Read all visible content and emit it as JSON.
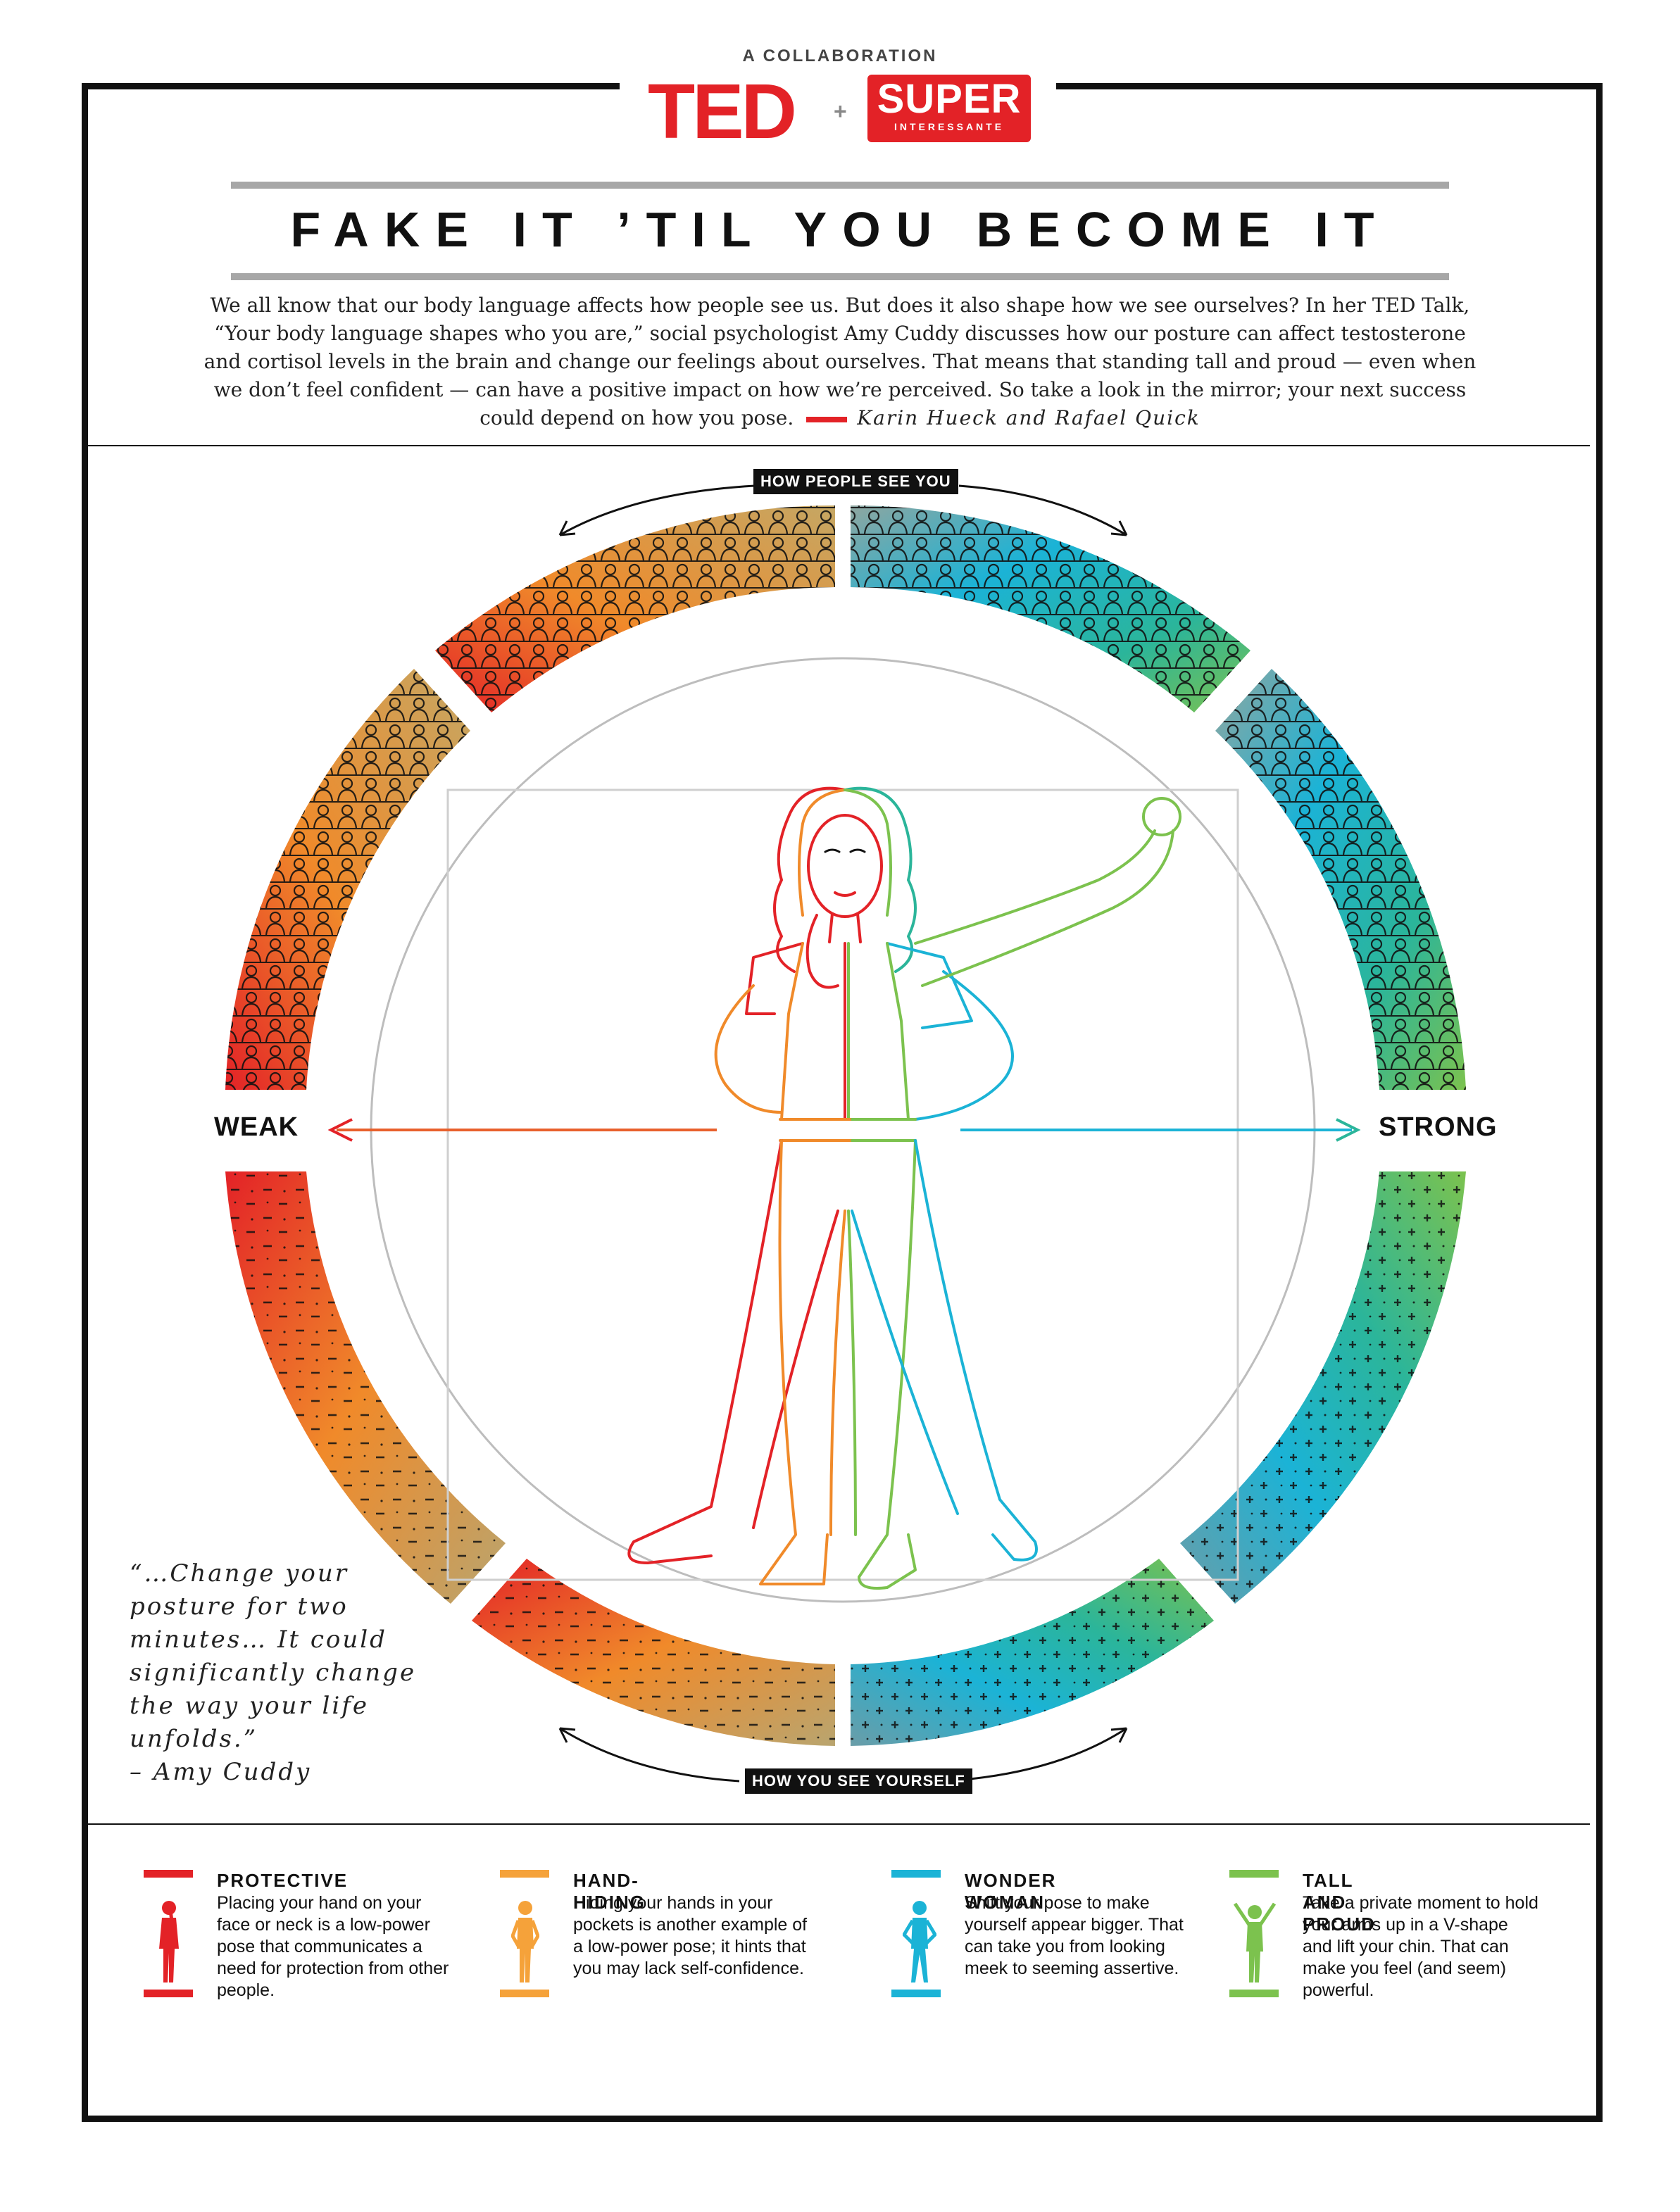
{
  "header": {
    "collaboration": "A COLLABORATION",
    "logo_ted": "TED",
    "logo_plus": "+",
    "logo_super": "SUPER",
    "logo_super_sub": "INTERESSANTE"
  },
  "title": "FAKE IT ’TIL YOU BECOME IT",
  "intro": {
    "text": "We all know that our body language affects how people see us. But does it also shape how we see ourselves? In her TED Talk, “Your body language shapes who you are,” social psychologist Amy Cuddy discusses how our posture can affect testosterone and cortisol levels in the brain and change our feelings about ourselves. That means that standing tall and proud — even when we don’t feel confident — can have a positive impact on how we’re perceived. So take a look in the mirror; your next success could depend on how you pose.",
    "authors": "Karin Hueck and Rafael Quick"
  },
  "diagram": {
    "top_label": "HOW PEOPLE SEE YOU",
    "bottom_label": "HOW YOU SEE YOURSELF",
    "left_label": "WEAK",
    "right_label": "STRONG"
  },
  "quote": {
    "text": "“…Change your posture for two minutes… It could significantly change the way your life unfolds.”",
    "attribution": "– Amy Cuddy"
  },
  "poses": [
    {
      "title": "PROTECTIVE",
      "text": "Placing your hand on your face or neck is a low-power pose that communicates a need for protection from other people.",
      "color": "#e32227",
      "icon": "protective-pose-icon"
    },
    {
      "title": "HAND-HIDING",
      "text": "Hiding your hands in your pockets is another example of a low-power pose; it hints that you may lack self-confidence.",
      "color": "#f5a23a",
      "icon": "hand-hiding-pose-icon"
    },
    {
      "title": "WONDER WOMAN",
      "text": "Shift your pose to make yourself appear bigger. That can take you from looking meek to seeming assertive.",
      "color": "#1bb3d6",
      "icon": "wonder-woman-pose-icon"
    },
    {
      "title": "TALL AND PROUD",
      "text": "Take a private moment to hold your arms up in a V-shape and lift your chin. That can make you feel (and seem) powerful.",
      "color": "#7cc24e",
      "icon": "tall-and-proud-pose-icon"
    }
  ],
  "colors": {
    "red": "#e32227",
    "orange": "#f5a23a",
    "blue": "#1bb3d6",
    "green": "#7cc24e",
    "rule_gray": "#a7a7a7"
  }
}
